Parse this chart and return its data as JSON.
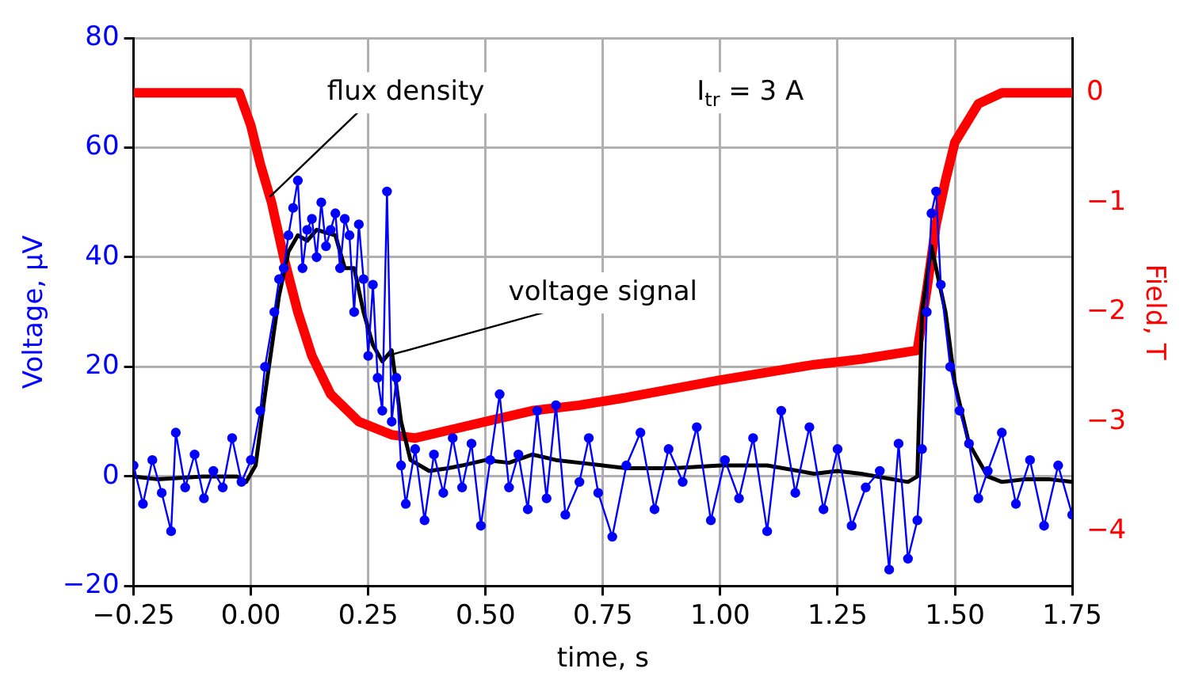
{
  "chart_data": {
    "type": "line",
    "xlabel": "time, s",
    "ylabel": "Voltage, µV",
    "y2label": "Field, T",
    "xlim": [
      -0.25,
      1.75
    ],
    "xticks": [
      {
        "value": -0.25,
        "label": "−0.25"
      },
      {
        "value": 0,
        "label": "0.00"
      },
      {
        "value": 0.25,
        "label": "0.25"
      },
      {
        "value": 0.5,
        "label": "0.50"
      },
      {
        "value": 0.75,
        "label": "0.75"
      },
      {
        "value": 1,
        "label": "1.00"
      },
      {
        "value": 1.25,
        "label": "1.25"
      },
      {
        "value": 1.5,
        "label": "1.50"
      },
      {
        "value": 1.75,
        "label": "1.75"
      }
    ],
    "ylim": [
      -20,
      80
    ],
    "yticks": [
      {
        "value": -20,
        "label": "−20"
      },
      0,
      20,
      40,
      60,
      80
    ],
    "y2lim": [
      -4.5,
      0.5
    ],
    "y2ticks": [
      {
        "value": -4,
        "label": "−4"
      },
      {
        "value": -3,
        "label": "−3"
      },
      {
        "value": -2,
        "label": "−2"
      },
      {
        "value": -1,
        "label": "−1"
      },
      0
    ],
    "grid": true,
    "legend": false,
    "marker": "circle",
    "series": [
      {
        "color": "#0000ff",
        "x": [
          -0.25,
          -0.23,
          -0.21,
          -0.19,
          -0.17,
          -0.16,
          -0.14,
          -0.12,
          -0.1,
          -0.08,
          -0.06,
          -0.04,
          -0.02,
          0,
          0.02,
          0.03,
          0.05,
          0.06,
          0.07,
          0.08,
          0.09,
          0.1,
          0.11,
          0.12,
          0.13,
          0.14,
          0.15,
          0.16,
          0.17,
          0.18,
          0.19,
          0.2,
          0.21,
          0.22,
          0.23,
          0.24,
          0.25,
          0.26,
          0.27,
          0.28,
          0.29,
          0.3,
          0.31,
          0.32,
          0.33,
          0.35,
          0.37,
          0.39,
          0.41,
          0.43,
          0.45,
          0.47,
          0.49,
          0.51,
          0.53,
          0.55,
          0.57,
          0.59,
          0.61,
          0.63,
          0.65,
          0.67,
          0.7,
          0.72,
          0.74,
          0.77,
          0.8,
          0.83,
          0.86,
          0.89,
          0.92,
          0.95,
          0.98,
          1.01,
          1.04,
          1.07,
          1.1,
          1.13,
          1.16,
          1.19,
          1.22,
          1.25,
          1.28,
          1.31,
          1.34,
          1.36,
          1.38,
          1.4,
          1.42,
          1.43,
          1.44,
          1.45,
          1.46,
          1.47,
          1.49,
          1.51,
          1.53,
          1.55,
          1.57,
          1.6,
          1.63,
          1.66,
          1.69,
          1.72,
          1.75
        ],
        "values": [
          2,
          -5,
          3,
          -3,
          -10,
          8,
          -2,
          4,
          -4,
          1,
          -2,
          7,
          -1,
          3,
          12,
          20,
          30,
          36,
          38,
          44,
          49,
          54,
          38,
          45,
          47,
          40,
          50,
          42,
          45,
          48,
          38,
          47,
          44,
          30,
          46,
          36,
          22,
          35,
          18,
          12,
          52,
          10,
          18,
          2,
          -5,
          5,
          -8,
          4,
          -3,
          7,
          -2,
          6,
          -9,
          3,
          15,
          -2,
          4,
          -6,
          12,
          -4,
          13,
          -7,
          -1,
          7,
          -3,
          -11,
          2,
          8,
          -6,
          5,
          -1,
          9,
          -8,
          3,
          -4,
          7,
          -10,
          12,
          -3,
          9,
          -6,
          5,
          -9,
          -2,
          1,
          -17,
          6,
          -15,
          -8,
          5,
          30,
          48,
          52,
          35,
          20,
          12,
          6,
          -4,
          1,
          8,
          -5,
          3,
          -9,
          2,
          -7
        ]
      },
      {
        "color": "#000000",
        "marker": "none",
        "x": [
          -0.25,
          -0.2,
          -0.1,
          -0.03,
          -0.01,
          0.01,
          0.03,
          0.06,
          0.08,
          0.1,
          0.12,
          0.14,
          0.18,
          0.2,
          0.22,
          0.24,
          0.26,
          0.28,
          0.3,
          0.32,
          0.34,
          0.38,
          0.42,
          0.45,
          0.5,
          0.55,
          0.6,
          0.65,
          0.7,
          0.75,
          0.8,
          0.9,
          1.0,
          1.1,
          1.2,
          1.25,
          1.3,
          1.4,
          1.42,
          1.43,
          1.45,
          1.48,
          1.5,
          1.53,
          1.57,
          1.6,
          1.65,
          1.7,
          1.75
        ],
        "values": [
          0,
          -0.5,
          0,
          0,
          -1,
          2,
          15,
          33,
          41,
          44,
          43,
          45,
          44,
          38,
          38,
          30,
          24,
          21,
          23,
          10,
          3,
          1,
          1.5,
          2,
          3,
          2.5,
          4,
          3,
          2.5,
          2,
          1.5,
          1.5,
          2,
          2,
          0.5,
          1,
          0.5,
          -1,
          0,
          30,
          42,
          30,
          17,
          6,
          0,
          -1,
          -0.5,
          -0.5,
          -1
        ]
      },
      {
        "color": "#ff0000",
        "axis": "y2",
        "marker": "none",
        "x": [
          -0.25,
          -0.025,
          0,
          0.02,
          0.044,
          0.07,
          0.1,
          0.13,
          0.17,
          0.23,
          0.3,
          0.35,
          0.4,
          0.5,
          0.6,
          0.7,
          0.8,
          0.9,
          1.0,
          1.1,
          1.2,
          1.3,
          1.42,
          1.44,
          1.46,
          1.48,
          1.5,
          1.55,
          1.6,
          1.75
        ],
        "values": [
          0,
          0,
          -0.3,
          -0.65,
          -1.0,
          -1.5,
          -2.0,
          -2.4,
          -2.75,
          -3.0,
          -3.12,
          -3.15,
          -3.1,
          -3.0,
          -2.9,
          -2.85,
          -2.78,
          -2.7,
          -2.62,
          -2.55,
          -2.48,
          -2.43,
          -2.35,
          -1.8,
          -1.2,
          -0.8,
          -0.45,
          -0.1,
          0,
          0
        ]
      }
    ],
    "annotations": [
      {
        "text": "flux density",
        "x": 0.04,
        "y": 51
      },
      {
        "text": "voltage signal",
        "x": 0.29,
        "y": 22
      },
      "I$_{tr}$ = 3 A"
    ]
  }
}
